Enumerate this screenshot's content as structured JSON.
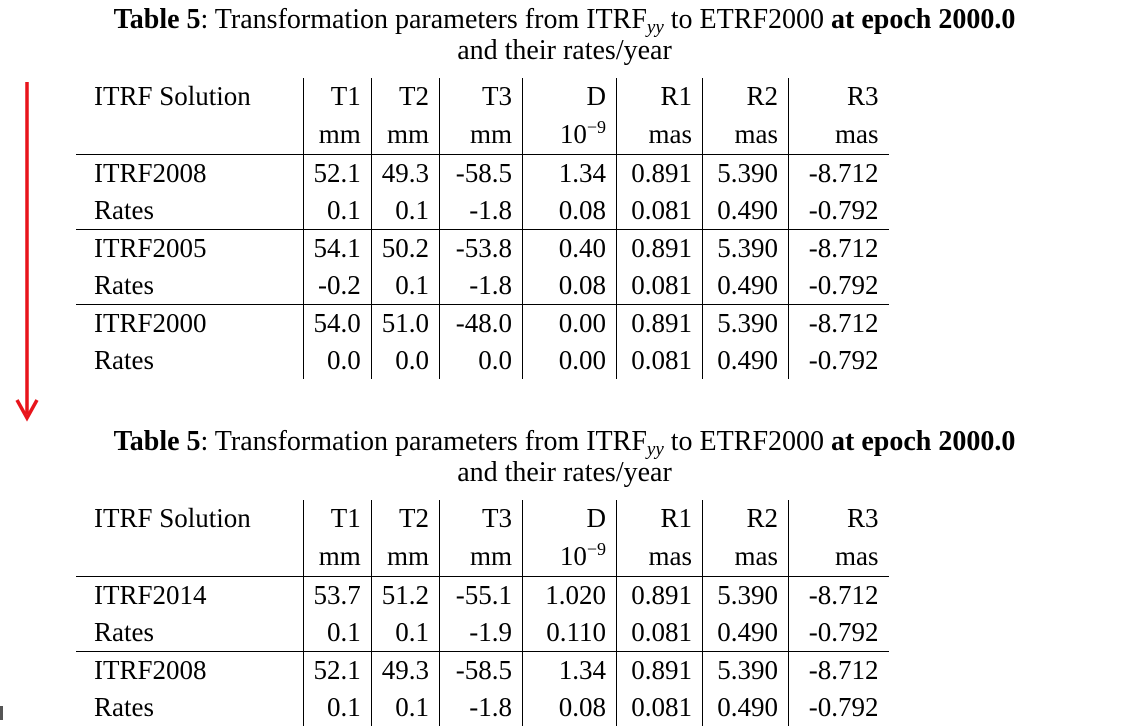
{
  "colors": {
    "arrow": "#e8141b"
  },
  "tables": [
    {
      "caption": {
        "label": "Table 5",
        "text_pre": ": Transformation parameters from ITRF",
        "subscript": "yy",
        "text_mid": " to ETRF2000 ",
        "bold_tail": "at epoch 2000.0",
        "line2": "and their rates/year"
      },
      "headers": [
        "ITRF Solution",
        "T1",
        "T2",
        "T3",
        "D",
        "R1",
        "R2",
        "R3"
      ],
      "units": [
        "",
        "mm",
        "mm",
        "mm",
        "10",
        "mas",
        "mas",
        "mas"
      ],
      "units_D_exponent": "−9",
      "rows": [
        [
          "ITRF2008",
          "52.1",
          "49.3",
          "-58.5",
          "1.34",
          "0.891",
          "5.390",
          "-8.712"
        ],
        [
          "Rates",
          "0.1",
          "0.1",
          "-1.8",
          "0.08",
          "0.081",
          "0.490",
          "-0.792"
        ],
        [
          "ITRF2005",
          "54.1",
          "50.2",
          "-53.8",
          "0.40",
          "0.891",
          "5.390",
          "-8.712"
        ],
        [
          "Rates",
          "-0.2",
          "0.1",
          "-1.8",
          "0.08",
          "0.081",
          "0.490",
          "-0.792"
        ],
        [
          "ITRF2000",
          "54.0",
          "51.0",
          "-48.0",
          "0.00",
          "0.891",
          "5.390",
          "-8.712"
        ],
        [
          "Rates",
          "0.0",
          "0.0",
          "0.0",
          "0.00",
          "0.081",
          "0.490",
          "-0.792"
        ]
      ]
    },
    {
      "caption": {
        "label": "Table 5",
        "text_pre": ": Transformation parameters from ITRF",
        "subscript": "yy",
        "text_mid": " to ETRF2000 ",
        "bold_tail": "at epoch 2000.0",
        "line2": "and their rates/year"
      },
      "headers": [
        "ITRF Solution",
        "T1",
        "T2",
        "T3",
        "D",
        "R1",
        "R2",
        "R3"
      ],
      "units": [
        "",
        "mm",
        "mm",
        "mm",
        "10",
        "mas",
        "mas",
        "mas"
      ],
      "units_D_exponent": "−9",
      "rows": [
        [
          "ITRF2014",
          "53.7",
          "51.2",
          "-55.1",
          "1.020",
          "0.891",
          "5.390",
          "-8.712"
        ],
        [
          "Rates",
          "0.1",
          "0.1",
          "-1.9",
          "0.110",
          "0.081",
          "0.490",
          "-0.792"
        ],
        [
          "ITRF2008",
          "52.1",
          "49.3",
          "-58.5",
          "1.34",
          "0.891",
          "5.390",
          "-8.712"
        ],
        [
          "Rates",
          "0.1",
          "0.1",
          "-1.8",
          "0.08",
          "0.081",
          "0.490",
          "-0.792"
        ]
      ]
    }
  ]
}
